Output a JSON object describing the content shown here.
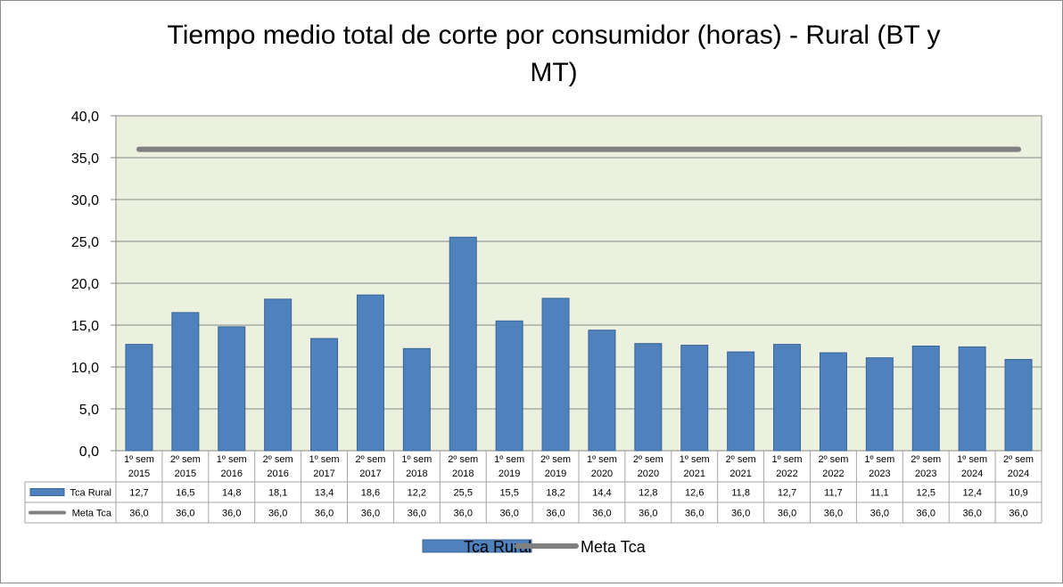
{
  "chart_data": {
    "type": "bar",
    "title_line1": "Tiempo medio total de corte por consumidor  (horas) - Rural (BT y",
    "title_line2": "MT)",
    "categories": [
      [
        "1º sem",
        "2015"
      ],
      [
        "2º sem",
        "2015"
      ],
      [
        "1º sem",
        "2016"
      ],
      [
        "2º sem",
        "2016"
      ],
      [
        "1º sem",
        "2017"
      ],
      [
        "2º sem",
        "2017"
      ],
      [
        "1º sem",
        "2018"
      ],
      [
        "2º sem",
        "2018"
      ],
      [
        "1º sem",
        "2019"
      ],
      [
        "2º sem",
        "2019"
      ],
      [
        "1º sem",
        "2020"
      ],
      [
        "2º sem",
        "2020"
      ],
      [
        "1º sem",
        "2021"
      ],
      [
        "2º sem",
        "2021"
      ],
      [
        "1º sem",
        "2022"
      ],
      [
        "2º sem",
        "2022"
      ],
      [
        "1º sem",
        "2023"
      ],
      [
        "2º sem",
        "2023"
      ],
      [
        "1º sem",
        "2024"
      ],
      [
        "2º sem",
        "2024"
      ]
    ],
    "series": [
      {
        "name": "Tca Rural",
        "kind": "bar",
        "color": "#4f81bd",
        "values": [
          12.7,
          16.5,
          14.8,
          18.1,
          13.4,
          18.6,
          12.2,
          25.5,
          15.5,
          18.2,
          14.4,
          12.8,
          12.6,
          11.8,
          12.7,
          11.7,
          11.1,
          12.5,
          12.4,
          10.9
        ],
        "labels": [
          "12,7",
          "16,5",
          "14,8",
          "18,1",
          "13,4",
          "18,6",
          "12,2",
          "25,5",
          "15,5",
          "18,2",
          "14,4",
          "12,8",
          "12,6",
          "11,8",
          "12,7",
          "11,7",
          "11,1",
          "12,5",
          "12,4",
          "10,9"
        ]
      },
      {
        "name": "Meta Tca",
        "kind": "line",
        "color": "#808080",
        "values": [
          36,
          36,
          36,
          36,
          36,
          36,
          36,
          36,
          36,
          36,
          36,
          36,
          36,
          36,
          36,
          36,
          36,
          36,
          36,
          36
        ],
        "labels": [
          "36,0",
          "36,0",
          "36,0",
          "36,0",
          "36,0",
          "36,0",
          "36,0",
          "36,0",
          "36,0",
          "36,0",
          "36,0",
          "36,0",
          "36,0",
          "36,0",
          "36,0",
          "36,0",
          "36,0",
          "36,0",
          "36,0",
          "36,0"
        ]
      }
    ],
    "ylim": [
      0,
      40
    ],
    "yticks": [
      0,
      5,
      10,
      15,
      20,
      25,
      30,
      35,
      40
    ],
    "ytick_labels": [
      "0,0",
      "5,0",
      "10,0",
      "15,0",
      "20,0",
      "25,0",
      "30,0",
      "35,0",
      "40,0"
    ],
    "grid": true,
    "plot_background": "#ebf1de",
    "data_table": true,
    "legend_position": "bottom"
  }
}
